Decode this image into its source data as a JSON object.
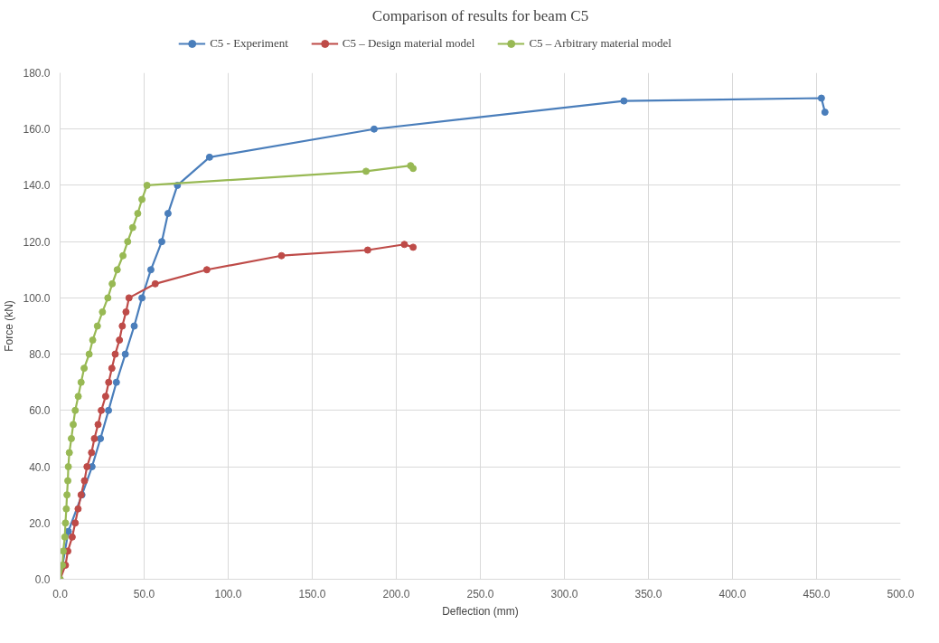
{
  "chart_data": {
    "type": "line",
    "title": "Comparison of results for beam C5",
    "xlabel": "Deflection (mm)",
    "ylabel": "Force (kN)",
    "xlim": [
      0,
      500
    ],
    "ylim": [
      0,
      180
    ],
    "xticks": [
      {
        "value": 0,
        "label": "0.0"
      },
      {
        "value": 50,
        "label": "50.0"
      },
      {
        "value": 100,
        "label": "100.0"
      },
      {
        "value": 150,
        "label": "150.0"
      },
      {
        "value": 200,
        "label": "200.0"
      },
      {
        "value": 250,
        "label": "250.0"
      },
      {
        "value": 300,
        "label": "300.0"
      },
      {
        "value": 350,
        "label": "350.0"
      },
      {
        "value": 400,
        "label": "400.0"
      },
      {
        "value": 450,
        "label": "450.0"
      },
      {
        "value": 500,
        "label": "500.0"
      }
    ],
    "yticks": [
      {
        "value": 0,
        "label": "0.0"
      },
      {
        "value": 20,
        "label": "20.0"
      },
      {
        "value": 40,
        "label": "40.0"
      },
      {
        "value": 60,
        "label": "60.0"
      },
      {
        "value": 80,
        "label": "80.0"
      },
      {
        "value": 100,
        "label": "100.0"
      },
      {
        "value": 120,
        "label": "120.0"
      },
      {
        "value": 140,
        "label": "140.0"
      },
      {
        "value": 160,
        "label": "160.0"
      },
      {
        "value": 180,
        "label": "180.0"
      }
    ],
    "grid": true,
    "legend": "top",
    "marker": "circle",
    "line_style": "solid",
    "series": [
      {
        "name": "C5 - Experiment",
        "color": "#4a7ebb",
        "x": [
          0,
          4.9,
          13,
          19,
          24,
          28.8,
          33.5,
          38.8,
          44.1,
          48.7,
          54,
          60.5,
          64.2,
          69.8,
          88.9,
          186.8,
          335.4,
          452.9,
          455
        ],
        "values": [
          0,
          17,
          30,
          40,
          50,
          60,
          70,
          80,
          90,
          100,
          110,
          120,
          130,
          140,
          150,
          160,
          170,
          171,
          166
        ]
      },
      {
        "name": "C5 – Design material model",
        "color": "#be4b48",
        "x": [
          0,
          3.2,
          4.6,
          7.2,
          9,
          10.7,
          12.5,
          14.5,
          16,
          18.7,
          20.4,
          22.6,
          24.5,
          27.1,
          28.9,
          30.8,
          32.8,
          35.3,
          37,
          39.2,
          41,
          56.6,
          87.3,
          131.7,
          183,
          204.8,
          210
        ],
        "values": [
          0,
          5,
          10,
          15,
          20,
          25,
          30,
          35,
          40,
          45,
          50,
          55,
          60,
          65,
          70,
          75,
          80,
          85,
          90,
          95,
          100,
          105,
          110,
          115,
          117,
          119,
          118
        ]
      },
      {
        "name": "C5 – Arbitrary material model",
        "color": "#98b954",
        "x": [
          0,
          1.4,
          1.9,
          2.8,
          3.2,
          3.7,
          4.1,
          4.6,
          4.9,
          5.5,
          6.7,
          7.8,
          9,
          10.8,
          12.5,
          14.3,
          17.3,
          19.4,
          22.2,
          25.2,
          28.4,
          31,
          34,
          37.4,
          40.2,
          43.2,
          46.2,
          48.7,
          51.7,
          182,
          208.5,
          210
        ],
        "values": [
          0,
          5,
          10,
          15,
          20,
          25,
          30,
          35,
          40,
          45,
          50,
          55,
          60,
          65,
          70,
          75,
          80,
          85,
          90,
          95,
          100,
          105,
          110,
          115,
          120,
          125,
          130,
          135,
          140,
          145,
          147,
          146
        ]
      }
    ]
  }
}
